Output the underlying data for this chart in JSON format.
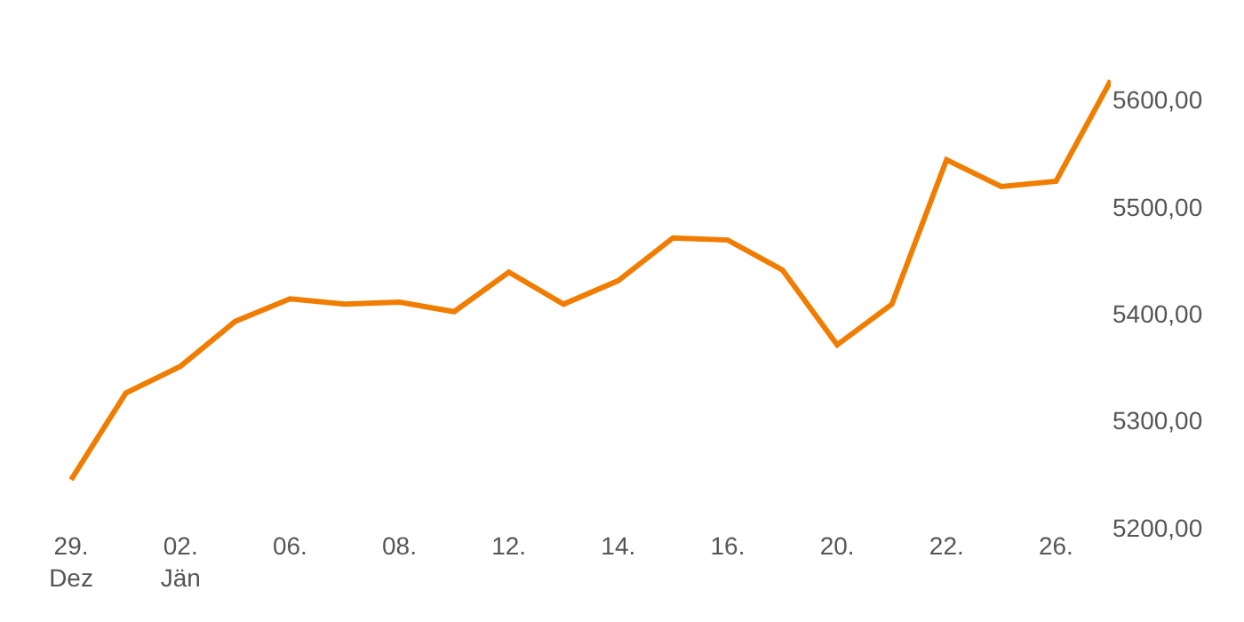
{
  "chart_data": {
    "type": "line",
    "categories": [
      "29.\nDez",
      null,
      "02.\nJän",
      null,
      "06.",
      null,
      "08.",
      null,
      "12.",
      null,
      "14.",
      null,
      "16.",
      null,
      "20.",
      null,
      "22.",
      null,
      "26.",
      null
    ],
    "series": [
      {
        "color": "#f07d00",
        "values": [
          5245,
          5326,
          5351,
          5393,
          5414,
          5409,
          5411,
          5402,
          5439,
          5409,
          5431,
          5471,
          5469,
          5441,
          5371,
          5409,
          5544,
          5519,
          5524,
          5618
        ]
      }
    ],
    "ylim": [
      5200,
      5690
    ],
    "yticks": [
      {
        "value": 5200,
        "label": "5200,00"
      },
      {
        "value": 5300,
        "label": "5300,00"
      },
      {
        "value": 5400,
        "label": "5400,00"
      },
      {
        "value": 5500,
        "label": "5500,00"
      },
      {
        "value": 5600,
        "label": "5600,00"
      }
    ],
    "legend": false,
    "marker": "none",
    "line_style": "solid"
  }
}
